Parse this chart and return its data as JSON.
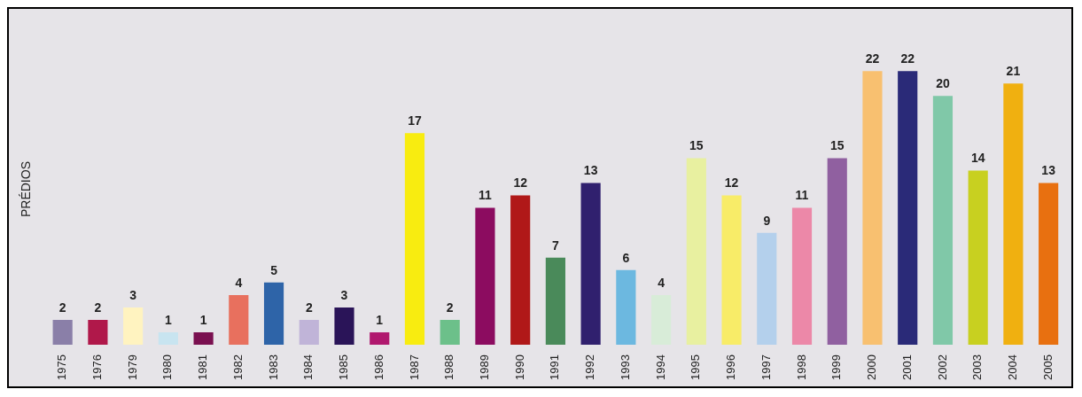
{
  "chart_data": {
    "type": "bar",
    "ylabel": "PRÉDIOS",
    "categories": [
      "1975",
      "1976",
      "1979",
      "1980",
      "1981",
      "1982",
      "1983",
      "1984",
      "1985",
      "1986",
      "1987",
      "1988",
      "1989",
      "1990",
      "1991",
      "1992",
      "1993",
      "1994",
      "1995",
      "1996",
      "1997",
      "1998",
      "1999",
      "2000",
      "2001",
      "2002",
      "2003",
      "2004",
      "2005"
    ],
    "values": [
      2,
      2,
      3,
      1,
      1,
      4,
      5,
      2,
      3,
      1,
      17,
      2,
      11,
      12,
      7,
      13,
      6,
      4,
      15,
      12,
      9,
      11,
      15,
      22,
      22,
      20,
      14,
      21,
      13
    ],
    "colors": [
      "#8a7fa8",
      "#b0184a",
      "#fff3c0",
      "#c8e4f0",
      "#7a1050",
      "#e8705e",
      "#2e64a8",
      "#c0b4d8",
      "#2a1458",
      "#b0186e",
      "#f8ec10",
      "#6cc08a",
      "#8c0c60",
      "#b01818",
      "#4a8a5a",
      "#30206e",
      "#6cb8e0",
      "#d8ecd8",
      "#e8f0a0",
      "#f8ec68",
      "#b4d0ec",
      "#ec88a8",
      "#9060a0",
      "#f8c070",
      "#2a2a78",
      "#80c8a8",
      "#c8d020",
      "#f0b010",
      "#e87010"
    ],
    "data_labels": true,
    "tick_labels": "x"
  }
}
